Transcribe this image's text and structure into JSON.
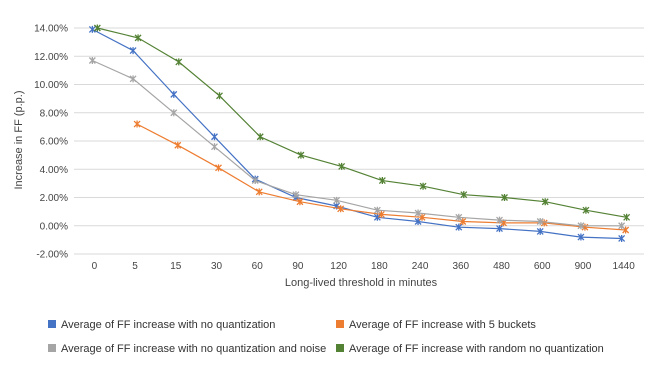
{
  "chart_data": {
    "type": "line",
    "xlabel": "Long-lived threshold in minutes",
    "ylabel": "Increase in FF (p.p.)",
    "ylim": [
      -0.02,
      0.14
    ],
    "ytick_step": 0.02,
    "grid": "horizontal",
    "legend_position": "bottom",
    "categories": [
      "0",
      "5",
      "15",
      "30",
      "60",
      "90",
      "120",
      "180",
      "240",
      "360",
      "480",
      "600",
      "900",
      "1440"
    ],
    "series": [
      {
        "name": "Average of FF increase  with no quantization",
        "color": "#4472C4",
        "points": [
          {
            "x": 0,
            "y": 0.139
          },
          {
            "x": 1,
            "y": 0.124
          },
          {
            "x": 2,
            "y": 0.093
          },
          {
            "x": 3,
            "y": 0.063
          },
          {
            "x": 4,
            "y": 0.033
          },
          {
            "x": 5,
            "y": 0.02
          },
          {
            "x": 6,
            "y": 0.014
          },
          {
            "x": 7,
            "y": 0.006
          },
          {
            "x": 8,
            "y": 0.003
          },
          {
            "x": 9,
            "y": -0.001
          },
          {
            "x": 10,
            "y": -0.002
          },
          {
            "x": 11,
            "y": -0.004
          },
          {
            "x": 12,
            "y": -0.008
          },
          {
            "x": 13,
            "y": -0.009
          }
        ]
      },
      {
        "name": "Average of FF increase  with 5 buckets",
        "color": "#ED7D31",
        "points": [
          {
            "x": 1,
            "y": 0.072
          },
          {
            "x": 2,
            "y": 0.057
          },
          {
            "x": 3,
            "y": 0.041
          },
          {
            "x": 4,
            "y": 0.024
          },
          {
            "x": 5,
            "y": 0.017
          },
          {
            "x": 6,
            "y": 0.012
          },
          {
            "x": 7,
            "y": 0.008
          },
          {
            "x": 8,
            "y": 0.006
          },
          {
            "x": 9,
            "y": 0.003
          },
          {
            "x": 10,
            "y": 0.002
          },
          {
            "x": 11,
            "y": 0.002
          },
          {
            "x": 12,
            "y": -0.001
          },
          {
            "x": 13,
            "y": -0.003
          }
        ]
      },
      {
        "name": "Average of FF increase with no quantization and noise",
        "color": "#A5A5A5",
        "points": [
          {
            "x": 0,
            "y": 0.117
          },
          {
            "x": 1,
            "y": 0.104
          },
          {
            "x": 2,
            "y": 0.08
          },
          {
            "x": 3,
            "y": 0.056
          },
          {
            "x": 4,
            "y": 0.032
          },
          {
            "x": 5,
            "y": 0.022
          },
          {
            "x": 6,
            "y": 0.018
          },
          {
            "x": 7,
            "y": 0.011
          },
          {
            "x": 8,
            "y": 0.009
          },
          {
            "x": 9,
            "y": 0.006
          },
          {
            "x": 10,
            "y": 0.004
          },
          {
            "x": 11,
            "y": 0.003
          },
          {
            "x": 12,
            "y": 0.0
          },
          {
            "x": 13,
            "y": 0.0
          }
        ]
      },
      {
        "name": "Average of FF increase with random no quantization",
        "color": "#548235",
        "points": [
          {
            "x": 0,
            "y": 0.14
          },
          {
            "x": 1,
            "y": 0.133
          },
          {
            "x": 2,
            "y": 0.116
          },
          {
            "x": 3,
            "y": 0.092
          },
          {
            "x": 4,
            "y": 0.063
          },
          {
            "x": 5,
            "y": 0.05
          },
          {
            "x": 6,
            "y": 0.042
          },
          {
            "x": 7,
            "y": 0.032
          },
          {
            "x": 8,
            "y": 0.028
          },
          {
            "x": 9,
            "y": 0.022
          },
          {
            "x": 10,
            "y": 0.02
          },
          {
            "x": 11,
            "y": 0.017
          },
          {
            "x": 12,
            "y": 0.011
          },
          {
            "x": 13,
            "y": 0.006
          }
        ]
      }
    ]
  },
  "colors": {
    "gridline": "#D9D9D9",
    "axis_text": "#444444"
  }
}
